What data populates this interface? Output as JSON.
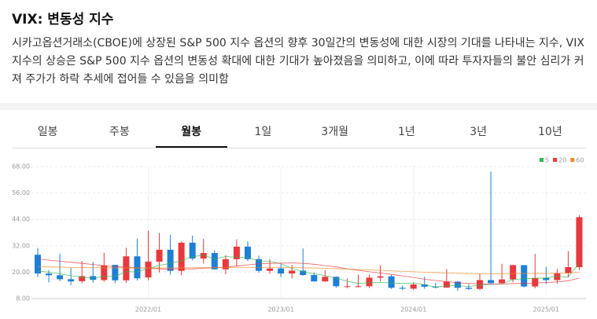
{
  "header": {
    "title": "VIX: 변동성 지수",
    "description": "시카고옵션거래소(CBOE)에 상장된 S&P 500 지수 옵션의 향후 30일간의 변동성에 대한 시장의 기대를 나타내는 지수, VIX 지수의 상승은 S&P 500 지수 옵션의 변동성 확대에 대한 기대가 높아졌음을 의미하고, 이에 따라 투자자들의 불안 심리가 커져 주가가 하락 추세에 접어들 수 있음을 의미함"
  },
  "tabs": {
    "items": [
      "일봉",
      "주봉",
      "월봉",
      "1일",
      "3개월",
      "1년",
      "3년",
      "10년"
    ],
    "active": 2
  },
  "chart_data": {
    "type": "candlestick",
    "categories": [
      null,
      null,
      null,
      null,
      null,
      null,
      null,
      null,
      null,
      null,
      "2022/01",
      null,
      null,
      null,
      null,
      null,
      null,
      null,
      null,
      null,
      null,
      null,
      "2023/01",
      null,
      null,
      null,
      null,
      null,
      null,
      null,
      null,
      null,
      null,
      null,
      "2024/01",
      null,
      null,
      null,
      null,
      null,
      null,
      null,
      null,
      null,
      null,
      null,
      "2025/01",
      null,
      null,
      null
    ],
    "open": [
      27.9,
      19.4,
      18.6,
      16.8,
      15.9,
      18.2,
      16.4,
      23.3,
      16.3,
      27.2,
      17.6,
      24.8,
      30.2,
      20.6,
      33.4,
      26.2,
      28.7,
      21.3,
      25.9,
      31.6,
      25.9,
      20.6,
      21.7,
      19.4,
      20.7,
      18.7,
      15.8,
      17.9,
      13.6,
      13.6,
      13.6,
      17.5,
      18.1,
      12.9,
      12.5,
      14.4,
      13.4,
      13.0,
      15.7,
      12.9,
      12.4,
      16.4,
      15.0,
      16.7,
      23.2,
      13.5,
      17.4,
      16.4,
      19.6,
      22.3
    ],
    "high": [
      31.0,
      20.9,
      28.4,
      22.0,
      25.1,
      24.7,
      28.8,
      23.3,
      31.1,
      35.3,
      38.9,
      37.8,
      37.0,
      34.0,
      36.6,
      35.1,
      30.0,
      27.7,
      34.9,
      34.0,
      27.5,
      25.9,
      23.6,
      23.3,
      30.8,
      19.9,
      20.8,
      18.1,
      17.1,
      18.9,
      18.9,
      23.1,
      18.8,
      14.0,
      15.4,
      17.9,
      15.2,
      21.4,
      16.0,
      14.6,
      19.4,
      65.7,
      23.8,
      23.4,
      23.2,
      28.3,
      22.5,
      21.5,
      29.6,
      45.9
    ],
    "low": [
      17.8,
      15.4,
      15.9,
      14.1,
      15.0,
      15.2,
      15.7,
      15.0,
      15.1,
      16.2,
      16.3,
      19.9,
      18.9,
      18.6,
      25.4,
      23.9,
      21.1,
      19.1,
      22.7,
      25.1,
      19.8,
      19.3,
      17.8,
      17.1,
      18.4,
      15.7,
      15.6,
      12.9,
      12.7,
      13.0,
      12.8,
      15.8,
      12.4,
      11.8,
      11.9,
      12.5,
      12.6,
      12.9,
      11.5,
      11.9,
      11.9,
      14.8,
      14.9,
      15.4,
      13.1,
      12.7,
      14.6,
      14.8,
      17.7,
      21.0
    ],
    "close": [
      19.4,
      18.6,
      16.8,
      15.8,
      18.2,
      16.5,
      23.1,
      16.3,
      27.2,
      17.2,
      24.8,
      30.2,
      20.6,
      33.4,
      26.2,
      28.7,
      21.3,
      25.9,
      31.6,
      25.9,
      20.6,
      21.7,
      19.4,
      20.7,
      18.7,
      15.8,
      17.9,
      13.6,
      13.6,
      13.6,
      17.5,
      18.1,
      12.9,
      12.5,
      14.4,
      13.4,
      13.0,
      15.7,
      12.9,
      12.4,
      16.4,
      15.0,
      16.7,
      23.2,
      13.5,
      17.4,
      16.4,
      19.6,
      22.3,
      45.0
    ],
    "up_color": "#e8383d",
    "down_color": "#1e7fd6",
    "series": [
      {
        "name": "5",
        "color": "#2db84d",
        "values": [
          20.5,
          20.0,
          19.2,
          18.4,
          17.8,
          17.2,
          18.1,
          18.0,
          20.3,
          20.1,
          21.7,
          23.1,
          24.0,
          25.2,
          27.0,
          27.8,
          26.0,
          27.1,
          26.8,
          26.7,
          25.1,
          25.0,
          23.8,
          21.7,
          20.2,
          19.3,
          18.5,
          17.3,
          15.9,
          14.9,
          15.2,
          15.3,
          15.1,
          14.9,
          15.1,
          14.3,
          13.2,
          13.8,
          13.9,
          13.5,
          14.1,
          14.5,
          14.6,
          16.7,
          17.0,
          17.2,
          17.4,
          18.1,
          17.8,
          24.1
        ]
      },
      {
        "name": "20",
        "color": "#e8383d",
        "values": [
          26.0,
          25.5,
          25.0,
          24.5,
          24.0,
          23.5,
          23.0,
          22.5,
          22.3,
          22.0,
          21.8,
          21.5,
          21.3,
          21.4,
          21.5,
          21.8,
          22.0,
          22.3,
          22.8,
          23.3,
          23.8,
          24.0,
          24.1,
          24.2,
          24.0,
          23.6,
          23.0,
          22.4,
          21.5,
          20.8,
          20.2,
          19.6,
          19.0,
          18.3,
          17.6,
          16.8,
          16.2,
          15.7,
          15.2,
          14.9,
          14.7,
          14.6,
          14.6,
          14.8,
          14.9,
          15.1,
          15.3,
          15.6,
          16.1,
          17.3
        ]
      },
      {
        "name": "60",
        "color": "#f08a24",
        "values": [
          22.5,
          22.4,
          22.3,
          22.2,
          22.1,
          22.0,
          22.0,
          21.9,
          21.9,
          21.9,
          21.9,
          21.9,
          21.9,
          22.0,
          22.0,
          22.1,
          22.1,
          22.1,
          22.2,
          22.2,
          22.2,
          22.2,
          22.2,
          22.1,
          22.0,
          21.9,
          21.8,
          21.6,
          21.4,
          21.2,
          21.0,
          20.8,
          20.6,
          20.4,
          20.2,
          20.0,
          19.8,
          19.6,
          19.5,
          19.4,
          19.3,
          19.3,
          19.3,
          19.4,
          19.4,
          19.4,
          19.4,
          19.5,
          19.6,
          19.9
        ]
      }
    ],
    "ylim": [
      8,
      68
    ],
    "yticks": [
      {
        "value": 8,
        "label": "8.00"
      },
      {
        "value": 20,
        "label": "20.00"
      },
      {
        "value": 32,
        "label": "32.00"
      },
      {
        "value": 44,
        "label": "44.00"
      },
      {
        "value": 56,
        "label": "56.00"
      },
      {
        "value": 68,
        "label": "68.00"
      }
    ],
    "grid": true
  }
}
